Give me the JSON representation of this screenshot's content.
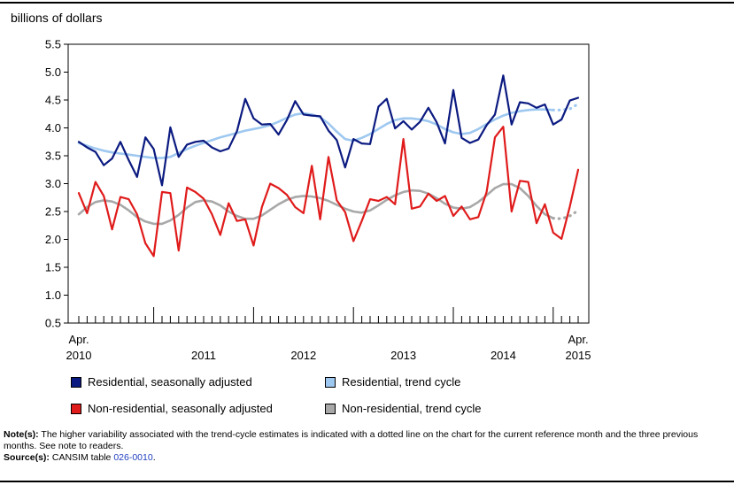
{
  "y_axis_title": "billions of dollars",
  "legend": [
    {
      "label": "Residential, seasonally adjusted",
      "color": "#0b1a80"
    },
    {
      "label": "Residential, trend cycle",
      "color": "#9ec8f0"
    },
    {
      "label": "Non-residential, seasonally adjusted",
      "color": "#e01b1b"
    },
    {
      "label": "Non-residential, trend cycle",
      "color": "#a8a8a8"
    }
  ],
  "notes": {
    "note_label": "Note(s):",
    "note_text": "The higher variability associated with the trend-cycle estimates is indicated with a dotted line on the chart for the current reference month and the three previous months. See note to readers.",
    "source_label": "Source(s):",
    "source_text": "CANSIM table ",
    "source_link": "026-0010",
    "source_end": "."
  },
  "chart_data": {
    "type": "line",
    "title": "",
    "ylabel": "billions of dollars",
    "xlabel": "",
    "ylim": [
      0.5,
      5.5
    ],
    "yticks": [
      "0.5",
      "1.0",
      "1.5",
      "2.0",
      "2.5",
      "3.0",
      "3.5",
      "4.0",
      "4.5",
      "5.0",
      "5.5"
    ],
    "x_start": "Apr. 2010",
    "x_end": "Apr. 2015",
    "n_months": 61,
    "x_tick_labels": [
      {
        "month_index": 0,
        "top": "Apr.",
        "bottom": "2010"
      },
      {
        "month_index": 15,
        "top": "",
        "bottom": "2011"
      },
      {
        "month_index": 27,
        "top": "",
        "bottom": "2012"
      },
      {
        "month_index": 39,
        "top": "",
        "bottom": "2013"
      },
      {
        "month_index": 51,
        "top": "",
        "bottom": "2014"
      },
      {
        "month_index": 60,
        "top": "Apr.",
        "bottom": "2015"
      }
    ],
    "dotted_from_index": 57,
    "series": [
      {
        "name": "Residential, seasonally adjusted",
        "color": "#0b1a80",
        "width": 2.2,
        "values": [
          3.75,
          3.65,
          3.57,
          3.33,
          3.45,
          3.75,
          3.42,
          3.12,
          3.83,
          3.62,
          2.97,
          4.01,
          3.48,
          3.7,
          3.75,
          3.77,
          3.65,
          3.58,
          3.63,
          3.94,
          4.52,
          4.17,
          4.06,
          4.07,
          3.88,
          4.14,
          4.48,
          4.24,
          4.22,
          4.21,
          3.95,
          3.78,
          3.29,
          3.8,
          3.72,
          3.71,
          4.38,
          4.52,
          3.99,
          4.12,
          3.97,
          4.11,
          4.36,
          4.1,
          3.72,
          4.68,
          3.82,
          3.73,
          3.79,
          4.05,
          4.24,
          4.94,
          4.06,
          4.46,
          4.44,
          4.36,
          4.42,
          4.06,
          4.15,
          4.49,
          4.54
        ]
      },
      {
        "name": "Residential, trend cycle",
        "color": "#9ec8f0",
        "width": 2.6,
        "values": [
          3.73,
          3.68,
          3.63,
          3.59,
          3.56,
          3.54,
          3.52,
          3.5,
          3.48,
          3.46,
          3.46,
          3.48,
          3.55,
          3.62,
          3.68,
          3.73,
          3.78,
          3.83,
          3.87,
          3.91,
          3.95,
          3.98,
          4.01,
          4.05,
          4.11,
          4.18,
          4.24,
          4.26,
          4.24,
          4.19,
          4.08,
          3.93,
          3.8,
          3.77,
          3.82,
          3.89,
          3.98,
          4.07,
          4.14,
          4.17,
          4.17,
          4.15,
          4.12,
          4.06,
          3.98,
          3.92,
          3.89,
          3.91,
          3.98,
          4.07,
          4.15,
          4.22,
          4.27,
          4.3,
          4.32,
          4.33,
          4.33,
          4.32,
          4.32,
          4.34,
          4.43
        ]
      },
      {
        "name": "Non-residential, seasonally adjusted",
        "color": "#e01b1b",
        "width": 2.2,
        "values": [
          2.83,
          2.47,
          3.03,
          2.78,
          2.18,
          2.76,
          2.72,
          2.45,
          1.93,
          1.7,
          2.85,
          2.83,
          1.8,
          2.93,
          2.85,
          2.73,
          2.45,
          2.08,
          2.65,
          2.33,
          2.36,
          1.89,
          2.58,
          3.0,
          2.92,
          2.8,
          2.58,
          2.47,
          3.32,
          2.36,
          3.48,
          2.7,
          2.49,
          1.97,
          2.33,
          2.72,
          2.69,
          2.76,
          2.63,
          3.8,
          2.55,
          2.59,
          2.82,
          2.69,
          2.78,
          2.42,
          2.59,
          2.36,
          2.4,
          2.85,
          3.83,
          4.02,
          2.5,
          3.05,
          3.03,
          2.29,
          2.63,
          2.12,
          2.01,
          2.59,
          3.25
        ]
      },
      {
        "name": "Non-residential, trend cycle",
        "color": "#a8a8a8",
        "width": 2.6,
        "values": [
          2.45,
          2.58,
          2.67,
          2.7,
          2.68,
          2.62,
          2.52,
          2.4,
          2.32,
          2.28,
          2.28,
          2.34,
          2.44,
          2.57,
          2.67,
          2.7,
          2.68,
          2.61,
          2.5,
          2.42,
          2.37,
          2.37,
          2.43,
          2.53,
          2.63,
          2.71,
          2.76,
          2.78,
          2.77,
          2.74,
          2.69,
          2.62,
          2.55,
          2.5,
          2.48,
          2.52,
          2.61,
          2.71,
          2.79,
          2.85,
          2.88,
          2.87,
          2.82,
          2.74,
          2.64,
          2.57,
          2.55,
          2.58,
          2.67,
          2.79,
          2.92,
          2.99,
          2.99,
          2.92,
          2.78,
          2.6,
          2.45,
          2.38,
          2.37,
          2.42,
          2.52
        ]
      }
    ]
  }
}
